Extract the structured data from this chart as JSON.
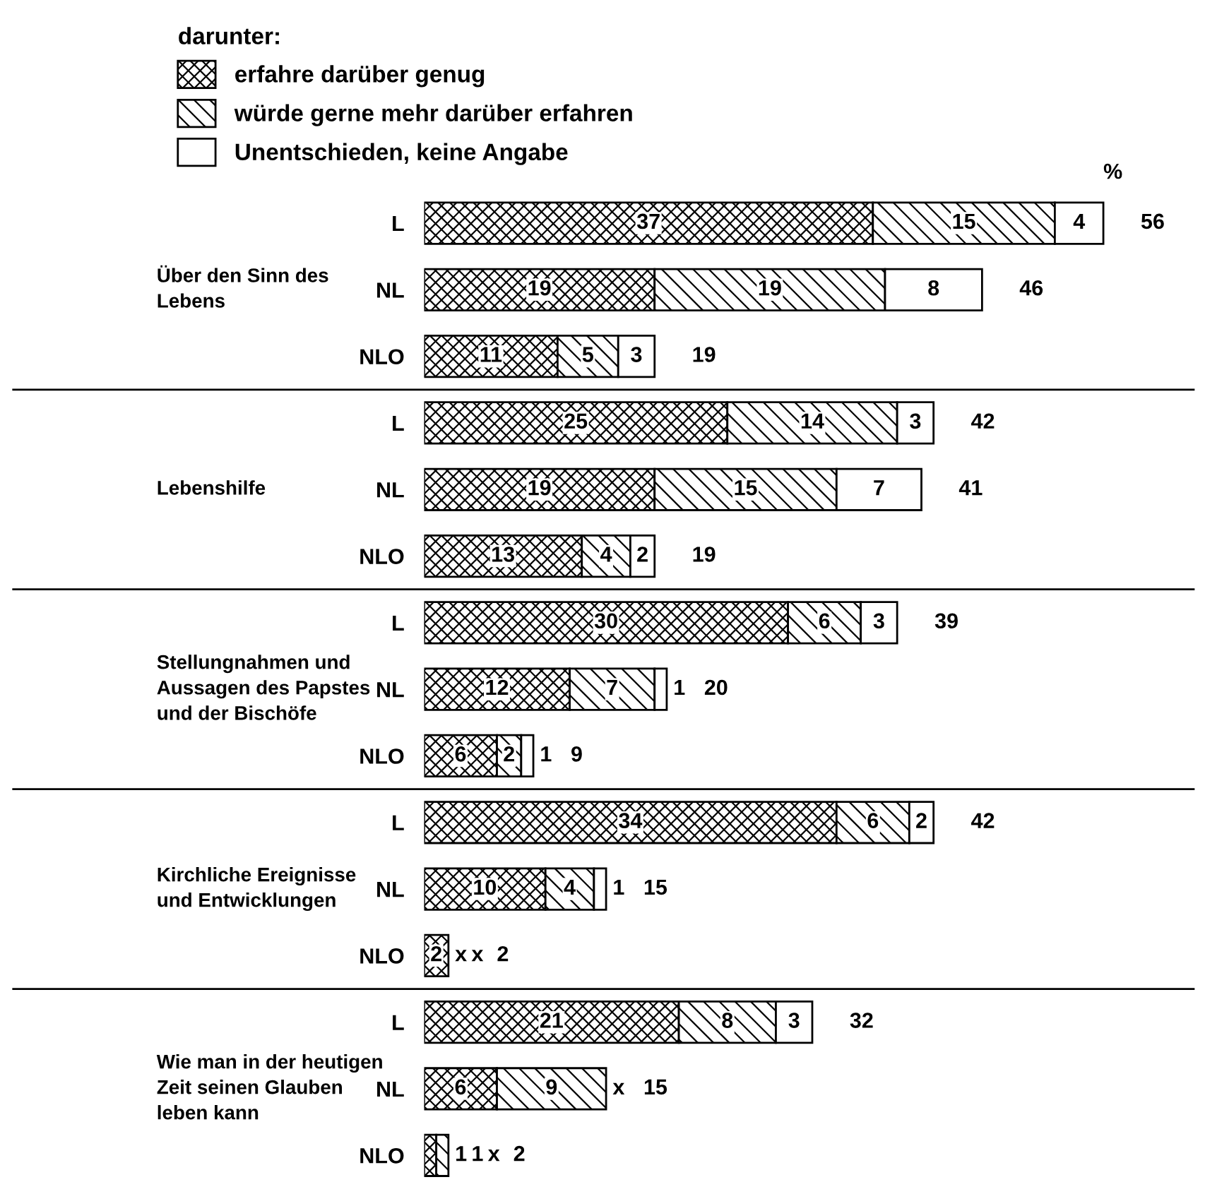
{
  "chart_data": {
    "type": "bar",
    "orientation": "horizontal",
    "stacked": true,
    "legend": "top left",
    "legend_title": "darunter:",
    "categories": [
      "L",
      "NL",
      "NLO",
      "L",
      "NL",
      "NLO",
      "L",
      "NL",
      "NLO",
      "L",
      "NL",
      "NLO",
      "L",
      "NL",
      "NLO"
    ],
    "series": [
      {
        "name": "erfahre darüber genug",
        "color": "#000000",
        "values": [
          37,
          19,
          11,
          25,
          19,
          13,
          30,
          12,
          6,
          34,
          10,
          2,
          21,
          6,
          1
        ],
        "value_labels": [
          "37",
          "19",
          "11",
          "25",
          "19",
          "13",
          "30",
          "12",
          "6",
          "34",
          "10",
          "2",
          "21",
          "6",
          "1"
        ]
      },
      {
        "name": "würde gerne mehr darüber erfahren",
        "color": "#000000",
        "values": [
          15,
          19,
          5,
          14,
          15,
          4,
          6,
          7,
          2,
          6,
          4,
          null,
          8,
          9,
          1
        ],
        "value_labels": [
          "15",
          "19",
          "5",
          "14",
          "15",
          "4",
          "6",
          "7",
          "2",
          "6",
          "4",
          "x",
          "8",
          "9",
          "1"
        ]
      },
      {
        "name": "Unentschieden, keine Angabe",
        "color": "#000000",
        "values": [
          4,
          8,
          3,
          3,
          7,
          2,
          3,
          1,
          1,
          2,
          1,
          null,
          3,
          null,
          null
        ],
        "value_labels": [
          "4",
          "8",
          "3",
          "3",
          "7",
          "2",
          "3",
          "1",
          "1",
          "2",
          "1",
          "x",
          "3",
          "x",
          "x"
        ]
      }
    ],
    "totals": [
      "56",
      "46",
      "19",
      "42",
      "41",
      "19",
      "39",
      "20",
      "9",
      "42",
      "15",
      "2",
      "32",
      "15",
      "2"
    ],
    "annotations": [
      "Über den Sinn des\nLebens",
      "Lebenshilfe",
      "Stellungnahmen und\nAussagen des Papstes\nund der Bischöfe",
      "Kirchliche Ereignisse\nund Entwicklungen",
      "Wie man in der heutigen\nZeit seinen Glauben\nleben kann",
      "%"
    ]
  }
}
